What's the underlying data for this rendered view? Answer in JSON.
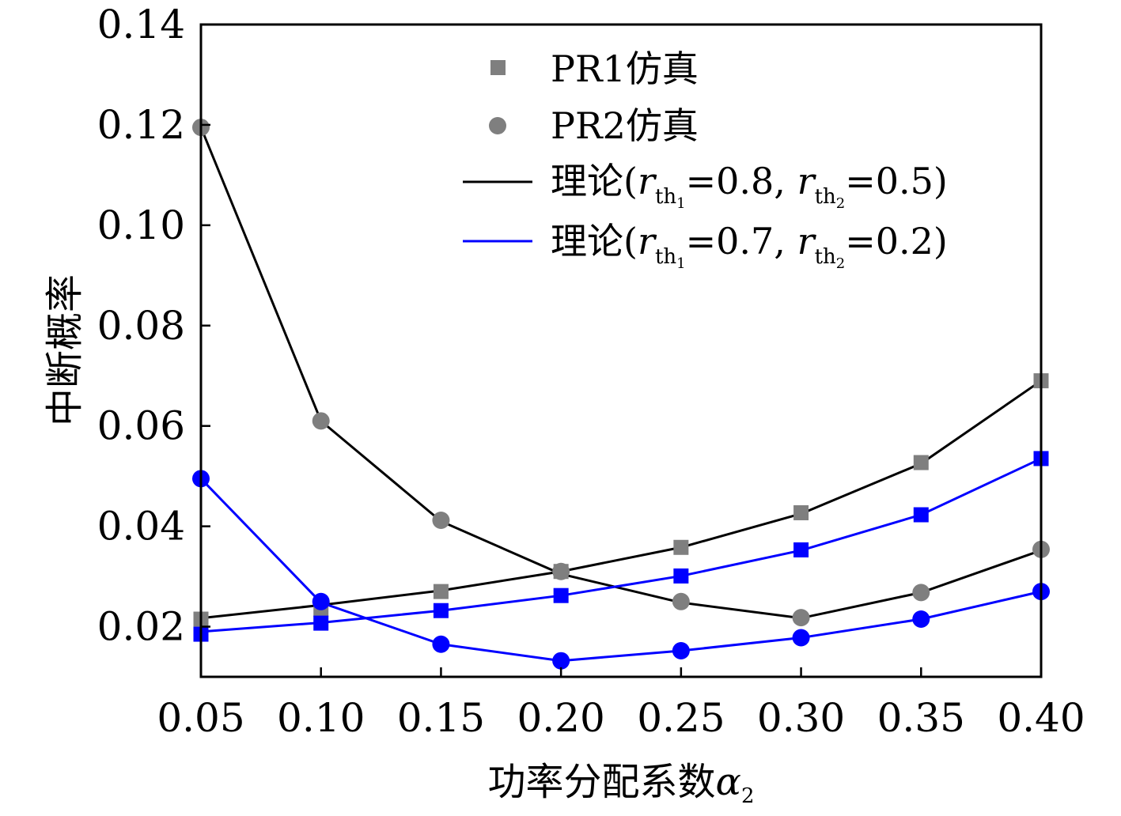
{
  "chart_data": {
    "type": "line",
    "xlabel": "功率分配系数",
    "xlabel_symbol": "α",
    "xlabel_symbol_sub": "2",
    "ylabel": "中断概率",
    "xlim": [
      0.05,
      0.4
    ],
    "ylim": [
      0.01,
      0.14
    ],
    "x_ticks": [
      "0.05",
      "0.10",
      "0.15",
      "0.20",
      "0.25",
      "0.30",
      "0.35",
      "0.40"
    ],
    "y_ticks": [
      "0.02",
      "0.04",
      "0.06",
      "0.08",
      "0.10",
      "0.12",
      "0.14"
    ],
    "x": [
      0.05,
      0.1,
      0.15,
      0.2,
      0.25,
      0.3,
      0.35,
      0.4
    ],
    "series": [
      {
        "name": "PR1",
        "case": "a",
        "kind": "theory",
        "color": "#000000",
        "values": [
          0.0217,
          0.0243,
          0.0272,
          0.031,
          0.0358,
          0.0425,
          0.0525,
          0.069
        ]
      },
      {
        "name": "PR1",
        "case": "a",
        "kind": "sim",
        "marker": "square",
        "color": "#7f7f7f",
        "values": [
          0.0215,
          0.0235,
          0.027,
          0.031,
          0.0358,
          0.0427,
          0.0527,
          0.069
        ]
      },
      {
        "name": "PR2",
        "case": "a",
        "kind": "theory",
        "color": "#000000",
        "values": [
          0.1195,
          0.061,
          0.041,
          0.0305,
          0.0248,
          0.0217,
          0.0268,
          0.0352
        ]
      },
      {
        "name": "PR2",
        "case": "a",
        "kind": "sim",
        "marker": "circle",
        "color": "#7f7f7f",
        "values": [
          0.1195,
          0.061,
          0.0412,
          0.031,
          0.025,
          0.0218,
          0.0268,
          0.0354
        ]
      },
      {
        "name": "PR1",
        "case": "b",
        "kind": "theory",
        "color": "#0000ff",
        "values": [
          0.019,
          0.0208,
          0.0232,
          0.0262,
          0.0301,
          0.0352,
          0.0423,
          0.0535
        ]
      },
      {
        "name": "PR1",
        "case": "b",
        "kind": "sim",
        "marker": "square",
        "color": "#0000ff",
        "values": [
          0.0185,
          0.0207,
          0.0232,
          0.0262,
          0.0301,
          0.0353,
          0.0423,
          0.0535
        ]
      },
      {
        "name": "PR2",
        "case": "b",
        "kind": "theory",
        "color": "#0000ff",
        "values": [
          0.0495,
          0.0248,
          0.0165,
          0.0132,
          0.0152,
          0.0178,
          0.0215,
          0.027
        ]
      },
      {
        "name": "PR2",
        "case": "b",
        "kind": "sim",
        "marker": "circle",
        "color": "#0000ff",
        "values": [
          0.0495,
          0.025,
          0.0165,
          0.0132,
          0.0152,
          0.0178,
          0.0215,
          0.027
        ]
      }
    ],
    "legend": {
      "placement": "top-center",
      "entries": [
        {
          "label": "PR1仿真",
          "marker": "square",
          "color": "#7f7f7f"
        },
        {
          "label": "PR2仿真",
          "marker": "circle",
          "color": "#7f7f7f"
        },
        {
          "label_prefix": "理论(",
          "var": "r",
          "sub": "th",
          "r1_index": "1",
          "eq1": "=0.8, ",
          "r2_index": "2",
          "eq2": "=0.5)",
          "line_color": "#000000"
        },
        {
          "label_prefix": "理论(",
          "var": "r",
          "sub": "th",
          "r1_index": "1",
          "eq1": "=0.7, ",
          "r2_index": "2",
          "eq2": "=0.2)",
          "line_color": "#0000ff"
        }
      ]
    }
  }
}
